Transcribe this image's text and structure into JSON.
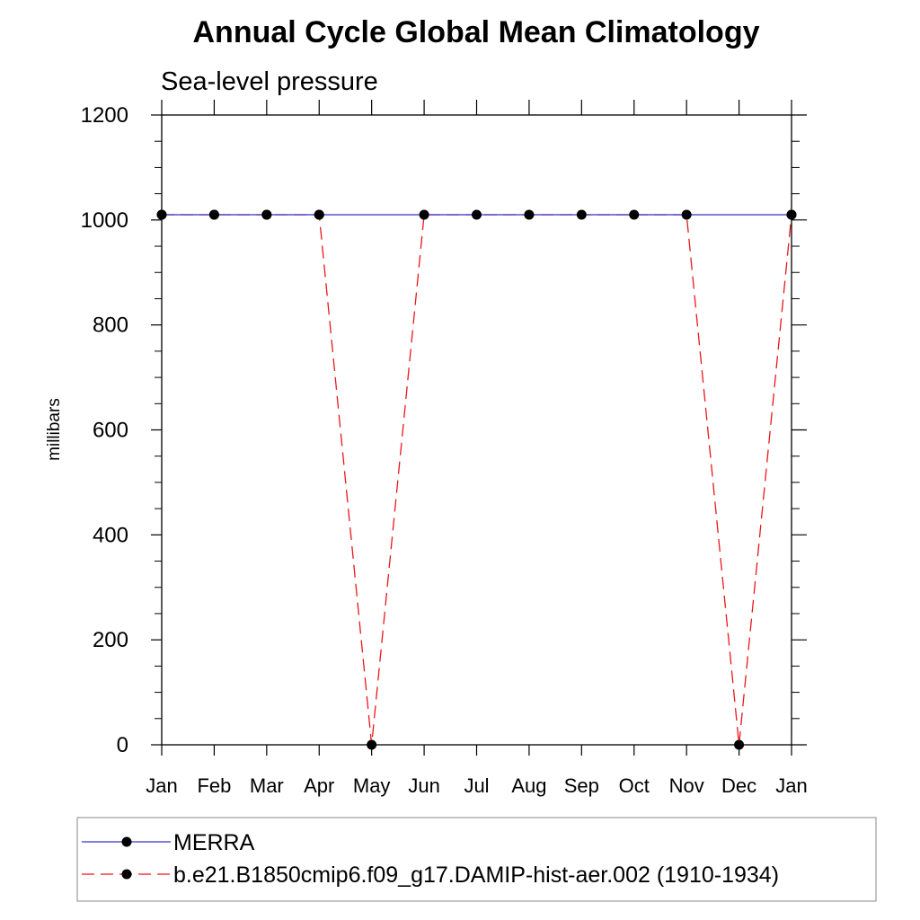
{
  "chart_data": {
    "type": "line",
    "title": "Annual Cycle Global Mean Climatology",
    "subtitle": "Sea-level pressure",
    "xlabel": "",
    "ylabel": "millibars",
    "categories": [
      "Jan",
      "Feb",
      "Mar",
      "Apr",
      "May",
      "Jun",
      "Jul",
      "Aug",
      "Sep",
      "Oct",
      "Nov",
      "Dec",
      "Jan"
    ],
    "ylim": [
      0,
      1200
    ],
    "yticks": [
      0,
      200,
      400,
      600,
      800,
      1000,
      1200
    ],
    "ytick_labels": [
      "0",
      "200",
      "400",
      "600",
      "800",
      "1000",
      "1200"
    ],
    "y_minor_step": 50,
    "series": [
      {
        "name": "MERRA",
        "color": "#3333cc",
        "line_style": "solid",
        "marker": "filled-circle",
        "values": [
          1010,
          1010,
          1010,
          1010,
          null,
          null,
          null,
          null,
          null,
          null,
          null,
          null,
          1010
        ]
      },
      {
        "name": "b.e21.B1850cmip6.f09_g17.DAMIP-hist-aer.002 (1910-1934)",
        "color": "#e8171c",
        "line_style": "dashed",
        "marker": "filled-circle",
        "values": [
          1010,
          1010,
          1010,
          1010,
          0,
          1010,
          1010,
          1010,
          1010,
          1010,
          1010,
          0,
          1010
        ]
      }
    ],
    "legend_position": "bottom",
    "grid": false
  }
}
